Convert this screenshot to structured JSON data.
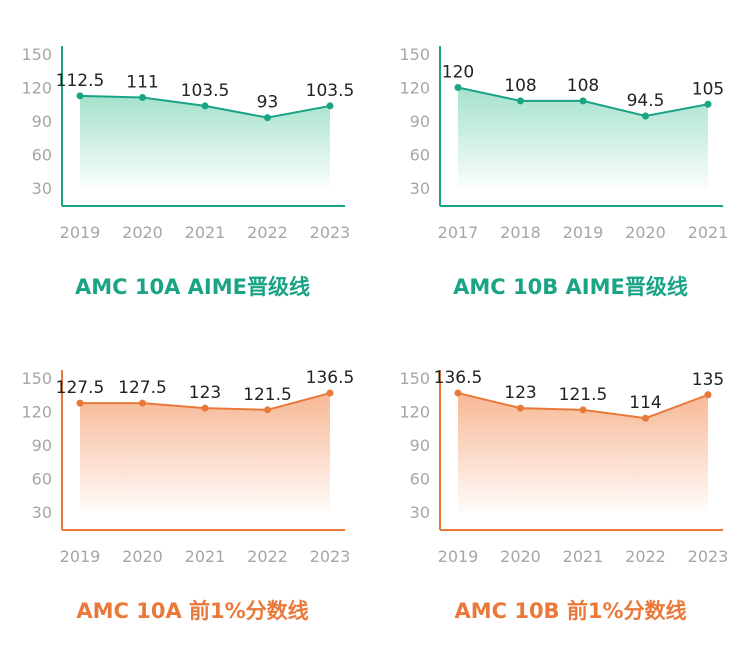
{
  "colors": {
    "green": "#1aa385",
    "green_fill": "#9fe0c9",
    "orange": "#e9793a",
    "orange_fill": "#f7b48f",
    "tick": "#a6a6a6",
    "label": "#222222"
  },
  "chart_data": [
    {
      "type": "area",
      "title": "AMC 10A AIME晋级线",
      "theme": "green",
      "categories": [
        "2019",
        "2020",
        "2021",
        "2022",
        "2023"
      ],
      "values": [
        112.5,
        111,
        103.5,
        93,
        103.5
      ],
      "value_labels": [
        "112.5",
        "111",
        "103.5",
        "93",
        "103.5"
      ],
      "yticks": [
        "150",
        "120",
        "90",
        "60",
        "30"
      ],
      "ylim": [
        30,
        150
      ]
    },
    {
      "type": "area",
      "title": "AMC 10B AIME晋级线",
      "theme": "green",
      "categories": [
        "2017",
        "2018",
        "2019",
        "2020",
        "2021"
      ],
      "values": [
        120,
        108,
        108,
        94.5,
        105
      ],
      "value_labels": [
        "120",
        "108",
        "108",
        "94.5",
        "105"
      ],
      "yticks": [
        "150",
        "120",
        "90",
        "60",
        "30"
      ],
      "ylim": [
        30,
        150
      ]
    },
    {
      "type": "area",
      "title": "AMC 10A 前1%分数线",
      "theme": "orange",
      "categories": [
        "2019",
        "2020",
        "2021",
        "2022",
        "2023"
      ],
      "values": [
        127.5,
        127.5,
        123,
        121.5,
        136.5
      ],
      "value_labels": [
        "127.5",
        "127.5",
        "123",
        "121.5",
        "136.5"
      ],
      "yticks": [
        "150",
        "120",
        "90",
        "60",
        "30"
      ],
      "ylim": [
        30,
        150
      ]
    },
    {
      "type": "area",
      "title": "AMC 10B 前1%分数线",
      "theme": "orange",
      "categories": [
        "2019",
        "2020",
        "2021",
        "2022",
        "2023"
      ],
      "values": [
        136.5,
        123,
        121.5,
        114,
        135
      ],
      "value_labels": [
        "136.5",
        "123",
        "121.5",
        "114",
        "135"
      ],
      "yticks": [
        "150",
        "120",
        "90",
        "60",
        "30"
      ],
      "ylim": [
        30,
        150
      ]
    }
  ]
}
